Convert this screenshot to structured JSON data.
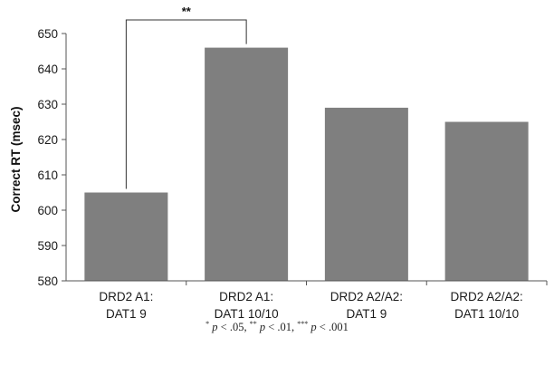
{
  "chart_data": {
    "type": "bar",
    "categories": [
      [
        "DRD2 A1:",
        "DAT1 9"
      ],
      [
        "DRD2 A1:",
        "DAT1 10/10"
      ],
      [
        "DRD2 A2/A2:",
        "DAT1 9"
      ],
      [
        "DRD2 A2/A2:",
        "DAT1 10/10"
      ]
    ],
    "values": [
      605,
      646,
      629,
      625
    ],
    "ylabel": "Correct RT (msec)",
    "ylim": [
      580,
      650
    ],
    "yticks": [
      580,
      590,
      600,
      610,
      620,
      630,
      640,
      650
    ],
    "bar_color": "#7f7f7f",
    "grid": false,
    "significance": [
      {
        "from": 0,
        "to": 1,
        "label": "**"
      }
    ]
  },
  "footnote": {
    "sym1": "*",
    "p1": "p",
    "t1": " < .05, ",
    "sym2": "**",
    "p2": "p",
    "t2": " < .01, ",
    "sym3": "***",
    "p3": "p",
    "t3": " < .001"
  }
}
